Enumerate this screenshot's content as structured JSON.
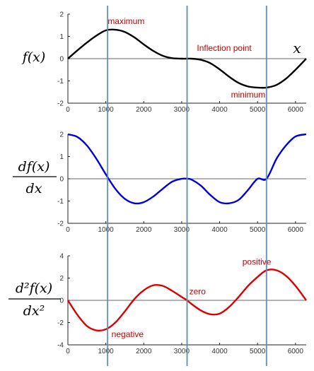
{
  "chart_data": [
    {
      "type": "line",
      "ylabel": "f(x)",
      "xlim": [
        0,
        6283
      ],
      "ylim": [
        -2,
        2
      ],
      "x_ticks": [
        0,
        1000,
        2000,
        3000,
        4000,
        5000,
        6000
      ],
      "y_ticks": [
        -2,
        -1,
        0,
        1,
        2
      ],
      "series": [
        {
          "color": "#000000",
          "x": [
            0,
            250,
            500,
            750,
            1000,
            1250,
            1500,
            1750,
            2000,
            2250,
            2500,
            2750,
            3000,
            3142,
            3250,
            3500,
            3750,
            4000,
            4250,
            4500,
            4750,
            5000,
            5236,
            5500,
            5750,
            6000,
            6283
          ],
          "y": [
            0,
            0.37,
            0.72,
            1.03,
            1.27,
            1.3,
            1.2,
            0.96,
            0.64,
            0.35,
            0.13,
            0.02,
            0.0,
            0.0,
            0.0,
            -0.05,
            -0.2,
            -0.48,
            -0.81,
            -1.09,
            -1.25,
            -1.3,
            -1.3,
            -1.18,
            -0.9,
            -0.5,
            0
          ]
        }
      ],
      "annotations": [
        {
          "text": "maximum",
          "x": 1050,
          "y": 1.55,
          "color": "#c00000"
        },
        {
          "text": "Inflection point",
          "x": 3400,
          "y": 0.35,
          "color": "#c00000"
        },
        {
          "text": "minimum",
          "x": 4300,
          "y": -1.75,
          "color": "#c00000"
        }
      ],
      "x_axis_label": "x"
    },
    {
      "type": "line",
      "ylabel": "df(x)/dx",
      "xlim": [
        0,
        6283
      ],
      "ylim": [
        -2,
        2
      ],
      "x_ticks": [
        0,
        1000,
        2000,
        3000,
        4000,
        5000,
        6000
      ],
      "y_ticks": [
        -2,
        -1,
        0,
        1,
        2
      ],
      "series": [
        {
          "color": "#0000dd",
          "x": [
            0,
            250,
            500,
            750,
            1000,
            1250,
            1500,
            1750,
            2000,
            2250,
            2500,
            2750,
            3000,
            3142,
            3250,
            3500,
            3750,
            4000,
            4250,
            4500,
            4750,
            5000,
            5236,
            5500,
            5750,
            6000,
            6283
          ],
          "y": [
            2.0,
            1.88,
            1.5,
            0.9,
            0.2,
            -0.45,
            -0.9,
            -1.1,
            -1.05,
            -0.8,
            -0.45,
            -0.13,
            0.0,
            0.0,
            -0.03,
            -0.3,
            -0.72,
            -1.05,
            -1.1,
            -0.95,
            -0.5,
            0.0,
            0.0,
            0.9,
            1.5,
            1.9,
            2.0
          ]
        }
      ],
      "annotations": []
    },
    {
      "type": "line",
      "ylabel": "d²f(x)/dx²",
      "xlim": [
        0,
        6283
      ],
      "ylim": [
        -4,
        4
      ],
      "x_ticks": [
        0,
        1000,
        2000,
        3000,
        4000,
        5000,
        6000
      ],
      "y_ticks": [
        -4,
        -2,
        0,
        2,
        4
      ],
      "series": [
        {
          "color": "#dd0000",
          "x": [
            0,
            250,
            500,
            750,
            1000,
            1250,
            1500,
            1750,
            2000,
            2250,
            2500,
            2750,
            3000,
            3142,
            3250,
            3500,
            3750,
            4000,
            4250,
            4500,
            4750,
            5000,
            5236,
            5500,
            5750,
            6000,
            6283
          ],
          "y": [
            0,
            -1.3,
            -2.3,
            -2.7,
            -2.6,
            -2.0,
            -1.0,
            0.1,
            0.9,
            1.35,
            1.3,
            0.85,
            0.3,
            0.0,
            -0.3,
            -0.9,
            -1.25,
            -1.2,
            -0.6,
            0.3,
            1.3,
            2.1,
            2.7,
            2.7,
            2.2,
            1.3,
            0
          ]
        }
      ],
      "annotations": [
        {
          "text": "negative",
          "x": 1150,
          "y": -3.3,
          "color": "#c00000"
        },
        {
          "text": "zero",
          "x": 3200,
          "y": 0.55,
          "color": "#c00000"
        },
        {
          "text": "positive",
          "x": 4600,
          "y": 3.2,
          "color": "#c00000"
        }
      ]
    }
  ],
  "vertical_markers": {
    "x": [
      1047,
      3142,
      5236
    ],
    "color": "#5b8db8"
  }
}
